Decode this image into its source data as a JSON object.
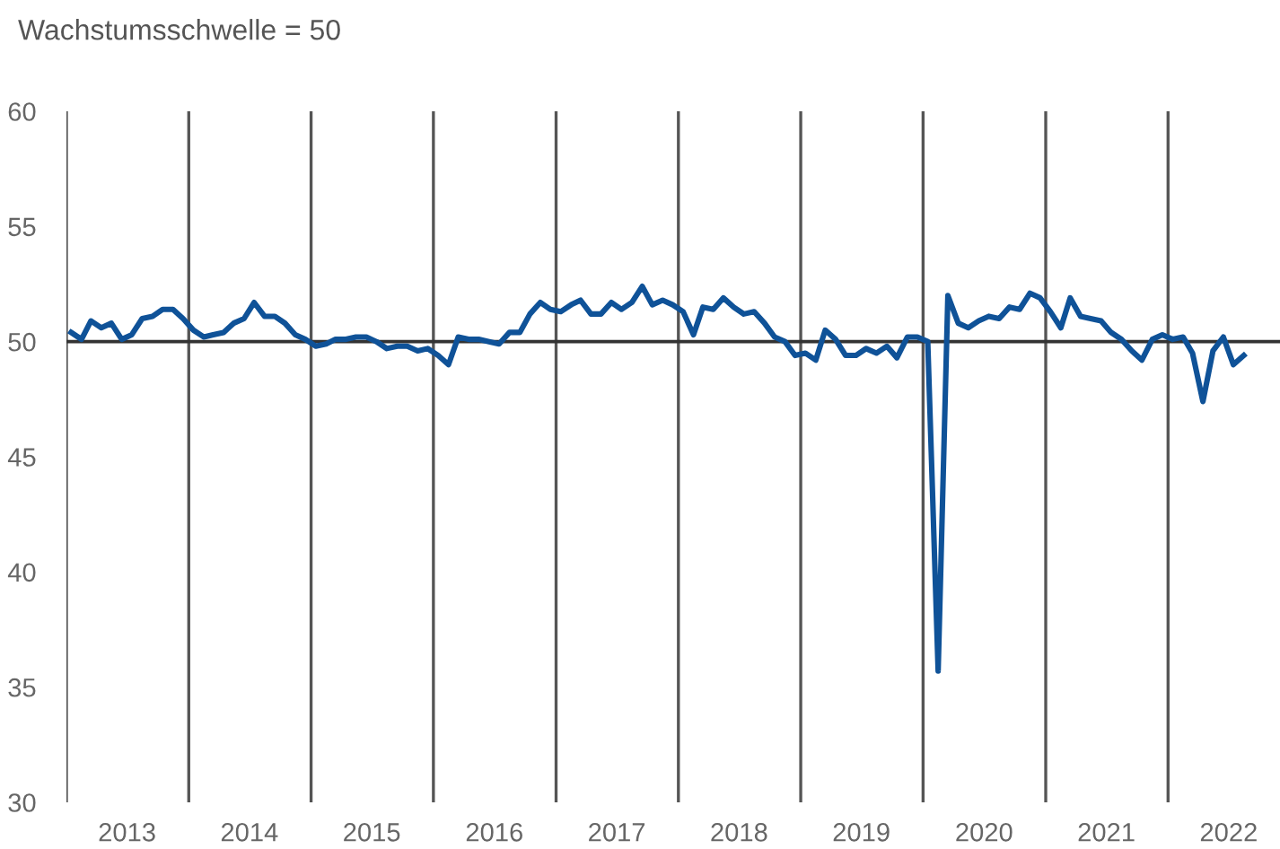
{
  "chart_data": {
    "type": "line",
    "title": "Wachstumsschwelle = 50",
    "x": [
      "2013-01-15",
      "2013-02-15",
      "2013-03-15",
      "2013-04-15",
      "2013-05-15",
      "2013-06-15",
      "2013-07-15",
      "2013-08-15",
      "2013-09-15",
      "2013-10-15",
      "2013-11-15",
      "2013-12-15",
      "2014-01-15",
      "2014-02-15",
      "2014-03-15",
      "2014-04-15",
      "2014-05-15",
      "2014-06-15",
      "2014-07-15",
      "2014-08-15",
      "2014-09-15",
      "2014-10-15",
      "2014-11-15",
      "2014-12-15",
      "2015-01-15",
      "2015-02-15",
      "2015-03-15",
      "2015-04-15",
      "2015-05-15",
      "2015-06-15",
      "2015-07-15",
      "2015-08-15",
      "2015-09-15",
      "2015-10-15",
      "2015-11-15",
      "2015-12-15",
      "2016-01-15",
      "2016-02-15",
      "2016-03-15",
      "2016-04-15",
      "2016-05-15",
      "2016-06-15",
      "2016-07-15",
      "2016-08-15",
      "2016-09-15",
      "2016-10-15",
      "2016-11-15",
      "2016-12-15",
      "2017-01-15",
      "2017-02-15",
      "2017-03-15",
      "2017-04-15",
      "2017-05-15",
      "2017-06-15",
      "2017-07-15",
      "2017-08-15",
      "2017-09-15",
      "2017-10-15",
      "2017-11-15",
      "2017-12-15",
      "2018-01-15",
      "2018-02-15",
      "2018-03-15",
      "2018-04-15",
      "2018-05-15",
      "2018-06-15",
      "2018-07-15",
      "2018-08-15",
      "2018-09-15",
      "2018-10-15",
      "2018-11-15",
      "2018-12-15",
      "2019-01-15",
      "2019-02-15",
      "2019-03-15",
      "2019-04-15",
      "2019-05-15",
      "2019-06-15",
      "2019-07-15",
      "2019-08-15",
      "2019-09-15",
      "2019-10-15",
      "2019-11-15",
      "2019-12-15",
      "2020-01-15",
      "2020-02-15",
      "2020-03-15",
      "2020-04-15",
      "2020-05-15",
      "2020-06-15",
      "2020-07-15",
      "2020-08-15",
      "2020-09-15",
      "2020-10-15",
      "2020-11-15",
      "2020-12-15",
      "2021-01-15",
      "2021-02-15",
      "2021-03-15",
      "2021-04-15",
      "2021-05-15",
      "2021-06-15",
      "2021-07-15",
      "2021-08-15",
      "2021-09-15",
      "2021-10-15",
      "2021-11-15",
      "2021-12-15",
      "2022-01-15",
      "2022-02-15",
      "2022-03-15",
      "2022-04-15",
      "2022-05-15",
      "2022-06-15",
      "2022-07-15",
      "2022-08-15"
    ],
    "series": [
      {
        "color": "#0f5298",
        "values": [
          50.4,
          50.1,
          50.9,
          50.6,
          50.8,
          50.1,
          50.3,
          51.0,
          51.1,
          51.4,
          51.4,
          51.0,
          50.5,
          50.2,
          50.3,
          50.4,
          50.8,
          51.0,
          51.7,
          51.1,
          51.1,
          50.8,
          50.3,
          50.1,
          49.8,
          49.9,
          50.1,
          50.1,
          50.2,
          50.2,
          50.0,
          49.7,
          49.8,
          49.8,
          49.6,
          49.7,
          49.4,
          49.0,
          50.2,
          50.1,
          50.1,
          50.0,
          49.9,
          50.4,
          50.4,
          51.2,
          51.7,
          51.4,
          51.3,
          51.6,
          51.8,
          51.2,
          51.2,
          51.7,
          51.4,
          51.7,
          52.4,
          51.6,
          51.8,
          51.6,
          51.3,
          50.3,
          51.5,
          51.4,
          51.9,
          51.5,
          51.2,
          51.3,
          50.8,
          50.2,
          50.0,
          49.4,
          49.5,
          49.2,
          50.5,
          50.1,
          49.4,
          49.4,
          49.7,
          49.5,
          49.8,
          49.3,
          50.2,
          50.2,
          50.0,
          35.7,
          52.0,
          50.8,
          50.6,
          50.9,
          51.1,
          51.0,
          51.5,
          51.4,
          52.1,
          51.9,
          51.3,
          50.6,
          51.9,
          51.1,
          51.0,
          50.9,
          50.4,
          50.1,
          49.6,
          49.2,
          50.1,
          50.3,
          50.1,
          50.2,
          49.5,
          47.4,
          49.6,
          50.2,
          49.0,
          49.4
        ]
      }
    ],
    "xlim": [
      "2013-01-01",
      "2022-12-01"
    ],
    "xticks": [
      {
        "value": "2013-07-01",
        "label": "2013"
      },
      {
        "value": "2014-07-01",
        "label": "2014"
      },
      {
        "value": "2015-07-01",
        "label": "2015"
      },
      {
        "value": "2016-07-01",
        "label": "2016"
      },
      {
        "value": "2017-07-01",
        "label": "2017"
      },
      {
        "value": "2018-07-01",
        "label": "2018"
      },
      {
        "value": "2019-07-01",
        "label": "2019"
      },
      {
        "value": "2020-07-01",
        "label": "2020"
      },
      {
        "value": "2021-07-01",
        "label": "2021"
      },
      {
        "value": "2022-07-01",
        "label": "2022"
      }
    ],
    "ylim": [
      30,
      60
    ],
    "yticks": [
      30,
      35,
      40,
      45,
      50,
      55,
      60
    ],
    "ref_lines": [
      {
        "axis": "y",
        "value": 50,
        "color": "#333333"
      },
      {
        "axis": "x",
        "value": "2013-01-01",
        "color": "#555555"
      },
      {
        "axis": "x",
        "value": "2014-01-01",
        "color": "#555555"
      },
      {
        "axis": "x",
        "value": "2015-01-01",
        "color": "#555555"
      },
      {
        "axis": "x",
        "value": "2016-01-01",
        "color": "#555555"
      },
      {
        "axis": "x",
        "value": "2017-01-01",
        "color": "#555555"
      },
      {
        "axis": "x",
        "value": "2018-01-01",
        "color": "#555555"
      },
      {
        "axis": "x",
        "value": "2019-01-01",
        "color": "#555555"
      },
      {
        "axis": "x",
        "value": "2020-01-01",
        "color": "#555555"
      },
      {
        "axis": "x",
        "value": "2021-01-01",
        "color": "#555555"
      },
      {
        "axis": "x",
        "value": "2022-01-01",
        "color": "#555555"
      }
    ],
    "grid": false,
    "legend": false,
    "marker": "none",
    "line_style": "solid"
  }
}
